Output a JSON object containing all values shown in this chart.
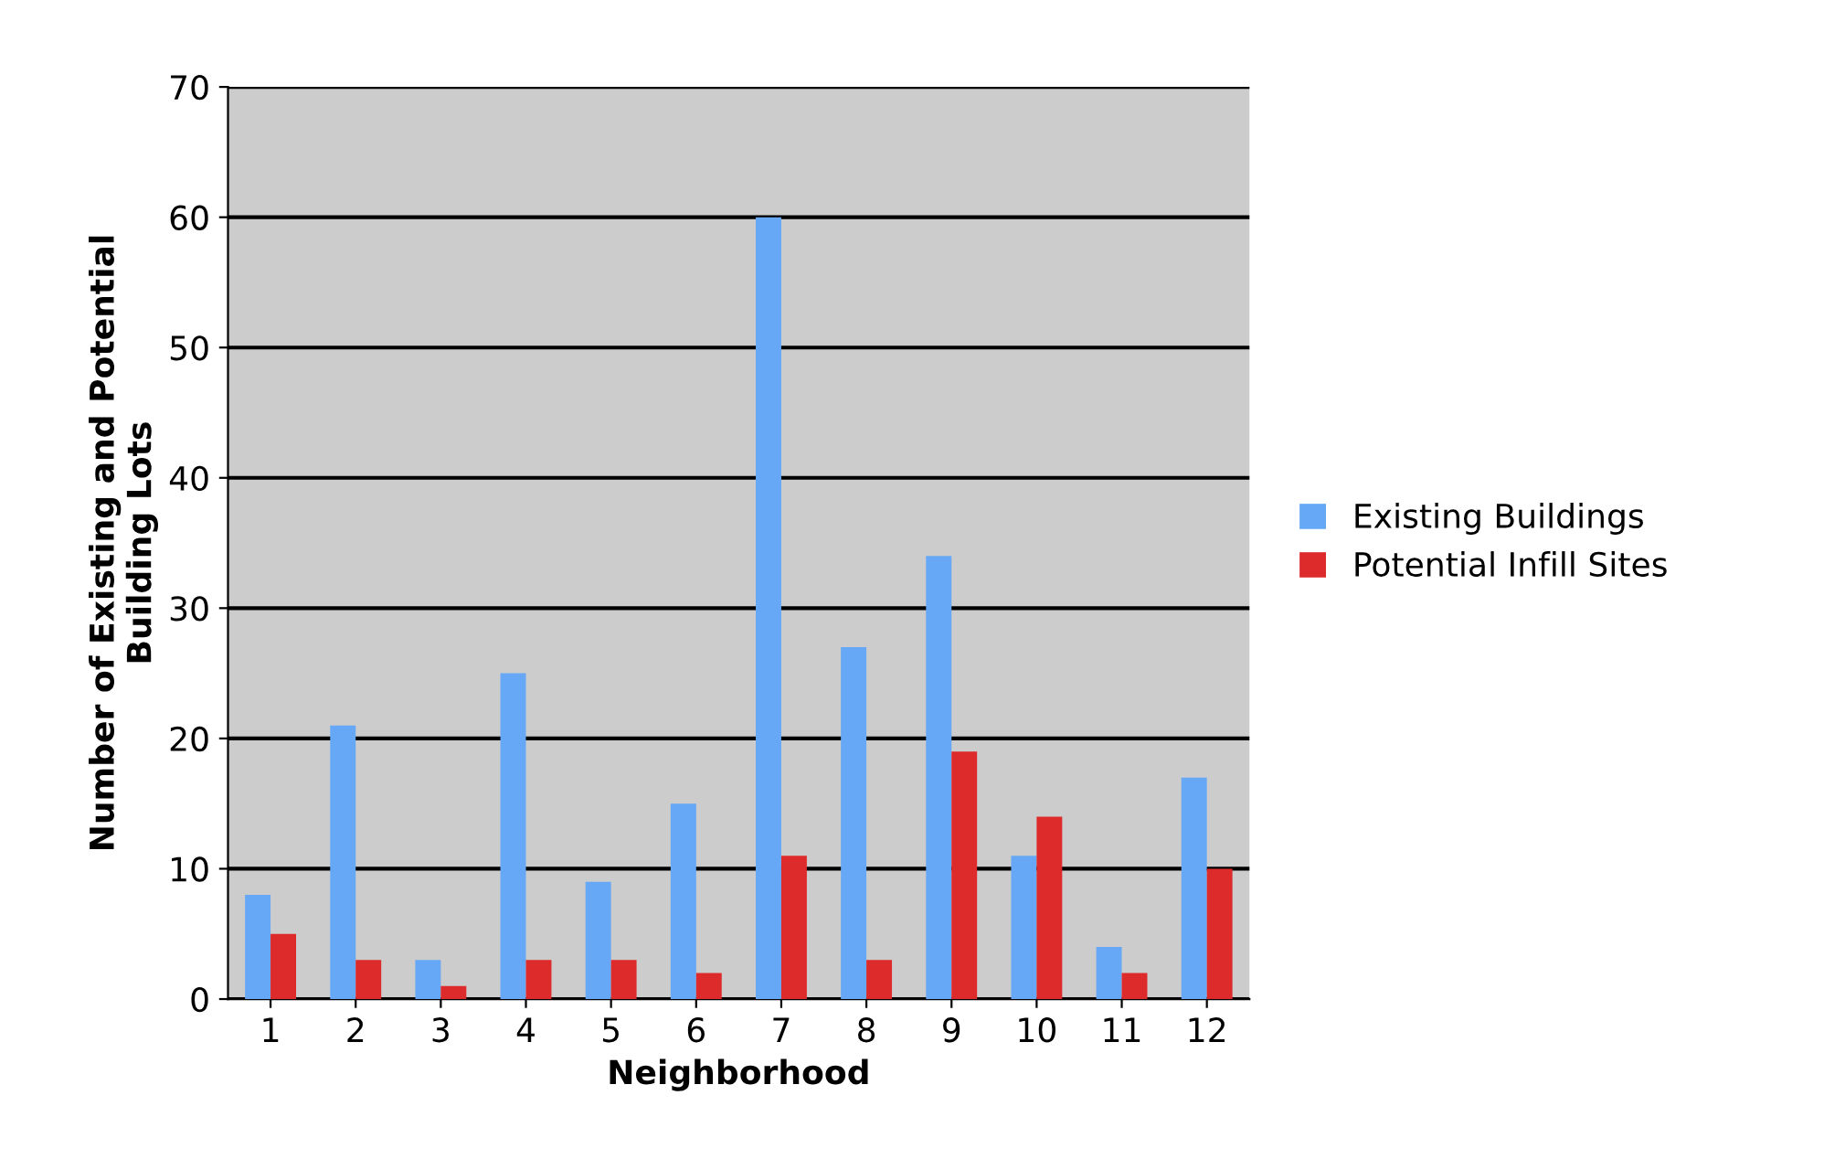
{
  "chart_data": {
    "type": "bar",
    "xlabel": "Neighborhood",
    "ylabel": "Number of Existing and Potential\nBuilding Lots",
    "categories": [
      "1",
      "2",
      "3",
      "4",
      "5",
      "6",
      "7",
      "8",
      "9",
      "10",
      "11",
      "12"
    ],
    "series": [
      {
        "name": "Existing Buildings",
        "color": "#66a8f5",
        "values": [
          8,
          21,
          3,
          25,
          9,
          15,
          60,
          27,
          34,
          11,
          4,
          17
        ]
      },
      {
        "name": "Potential Infill Sites",
        "color": "#dd2a2a",
        "values": [
          5,
          3,
          1,
          3,
          3,
          2,
          11,
          3,
          19,
          14,
          2,
          10
        ]
      }
    ],
    "ylim": [
      0,
      70
    ],
    "yticks": [
      0,
      10,
      20,
      30,
      40,
      50,
      60,
      70
    ],
    "grid": "y",
    "legend": "right"
  }
}
